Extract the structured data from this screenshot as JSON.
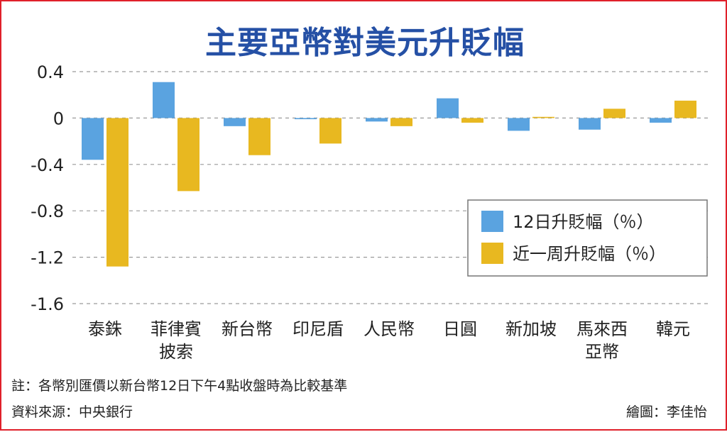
{
  "chart_data": {
    "type": "bar",
    "title": "主要亞幣對美元升貶幅",
    "categories": [
      [
        "泰銖"
      ],
      [
        "菲律賓",
        "披索"
      ],
      [
        "新台幣"
      ],
      [
        "印尼盾"
      ],
      [
        "人民幣"
      ],
      [
        "日圓"
      ],
      [
        "新加坡"
      ],
      [
        "馬來西",
        "亞幣"
      ],
      [
        "韓元"
      ]
    ],
    "series": [
      {
        "name": "12日升貶幅（％）",
        "color": "#5aa3e0",
        "values": [
          -0.36,
          0.31,
          -0.07,
          -0.01,
          -0.03,
          0.17,
          -0.11,
          -0.1,
          -0.04
        ]
      },
      {
        "name": "近一周升貶幅（％）",
        "color": "#e8b820",
        "values": [
          -1.28,
          -0.63,
          -0.32,
          -0.22,
          -0.07,
          -0.04,
          0.01,
          0.08,
          0.15
        ]
      }
    ],
    "yticks": [
      0.4,
      0,
      -0.4,
      -0.8,
      -1.2,
      -1.6
    ],
    "ytick_labels": [
      "0.4",
      "0",
      "-0.4",
      "-0.8",
      "-1.2",
      "-1.6"
    ],
    "ylim": [
      -1.6,
      0.4
    ],
    "grid": true,
    "legend_position": "right"
  },
  "footer": {
    "note": "註：各幣別匯價以新台幣12日下午4點收盤時為比較基準",
    "source": "資料來源：中央銀行",
    "credit": "繪圖：李佳怡"
  }
}
